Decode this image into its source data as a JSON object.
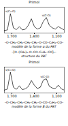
{
  "chart_data": [
    {
      "type": "line",
      "title": "Primol",
      "color": "#000000",
      "x": [
        1800,
        1760,
        1720,
        1680,
        1640,
        1600,
        1560,
        1520,
        1480,
        1440,
        1400,
        1360,
        1320,
        1280,
        1240,
        1200,
        1160,
        1120,
        1080,
        1040,
        1000
      ],
      "values": [
        1,
        1.2,
        7.5,
        2,
        1.3,
        2.5,
        1.2,
        1.5,
        3,
        5.5,
        2.5,
        1.5,
        2,
        4.5,
        6,
        3,
        2,
        1.5,
        2.5,
        1.8,
        1.2
      ],
      "xlim": [
        1800,
        1000
      ],
      "xticks": [
        1700,
        1400,
        1100
      ],
      "ylim": [
        0,
        10
      ],
      "tick_labels": "x",
      "annotations": [
        {
          "x": 1720,
          "y": 8.3,
          "text": "ν(C=O)"
        },
        {
          "x": 1240,
          "y": 6.8,
          "text": "ν(C-O)"
        }
      ]
    },
    {
      "type": "line",
      "title": "Primol",
      "color": "#000000",
      "x": [
        1800,
        1760,
        1720,
        1680,
        1640,
        1600,
        1560,
        1520,
        1480,
        1440,
        1400,
        1360,
        1320,
        1280,
        1240,
        1200,
        1160,
        1120,
        1080,
        1040,
        1000
      ],
      "values": [
        1.1,
        1.5,
        8,
        2.2,
        1.4,
        2.8,
        1.3,
        1.6,
        2.5,
        4.8,
        3,
        1.7,
        2.2,
        5,
        5.5,
        2.6,
        1.9,
        1.7,
        3,
        1.6,
        1.1
      ],
      "xlim": [
        1800,
        1000
      ],
      "xticks": [
        1700,
        1400,
        1100
      ],
      "ylim": [
        0,
        10
      ],
      "tick_labels": "x",
      "annotations": [
        {
          "x": 1720,
          "y": 8.8,
          "text": "ν(C=O)"
        },
        {
          "x": 1260,
          "y": 6.3,
          "text": "ν(C-O)"
        }
      ]
    }
  ],
  "structures": [
    {
      "formula": "–O–CH₂–CH₂–CH₂–CH₂–O–CO–C₆H₄–CO–",
      "caption": "modèle de la forme α du PBT"
    },
    {
      "formula": "–[O–(CH₂)₄–O–CO–C₆H₄–CO]ₙ–",
      "caption": "structure du PBT"
    },
    {
      "formula": "–O–CH₂–CH₂–CH₂–CH₂–O–CO–C₆H₄–CO–",
      "caption": "modèle de la forme β du PBT"
    }
  ]
}
